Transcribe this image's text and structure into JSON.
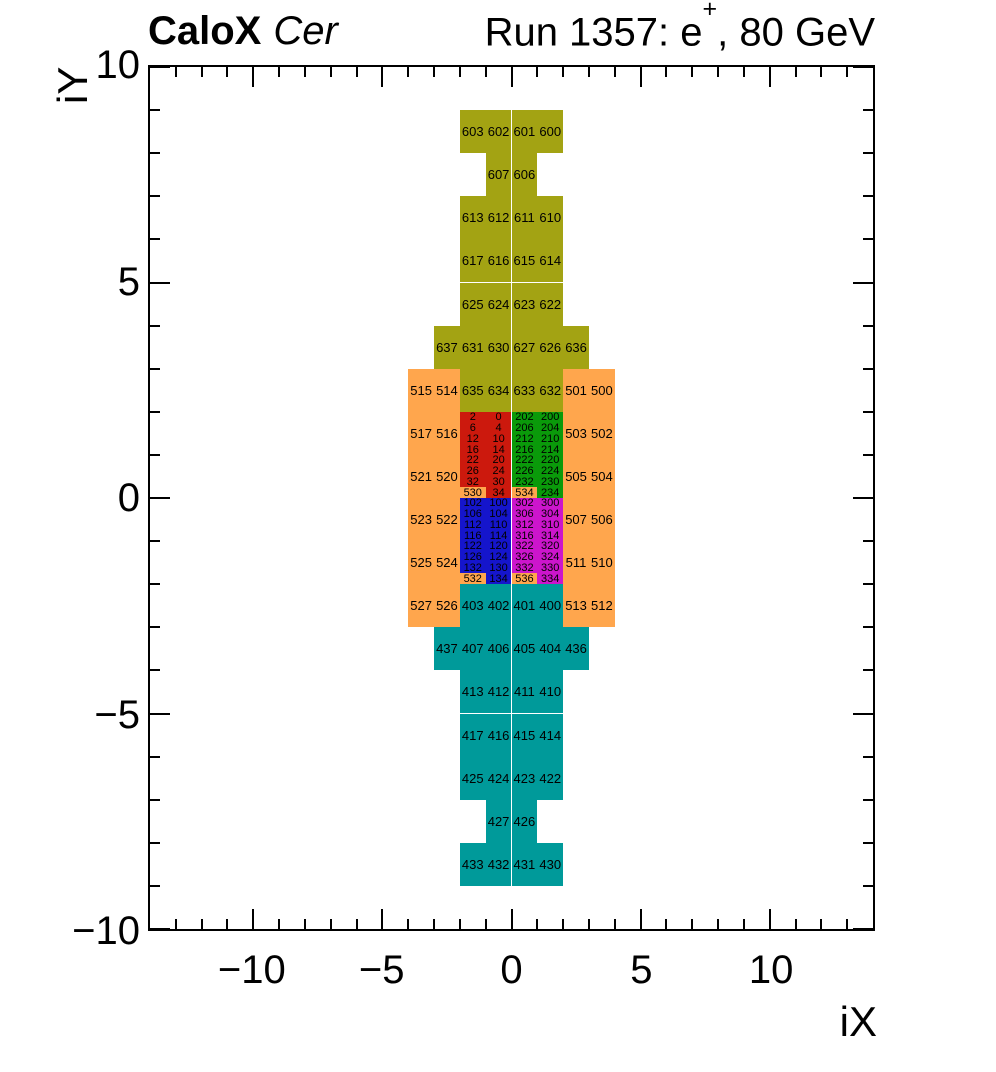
{
  "header": {
    "title_bold": "CaloX",
    "title_italic": "Cer",
    "run_label": {
      "prefix": "Run 1357: e",
      "superscript": "+",
      "suffix": ", 80 GeV"
    }
  },
  "chart_data": {
    "type": "heatmap",
    "title": "CaloX Cer — Run 1357: e+, 80 GeV channel map",
    "xlabel": "iX",
    "ylabel": "iY",
    "xlim": [
      -14,
      14
    ],
    "ylim": [
      -10,
      10
    ],
    "grid": false,
    "x_major_ticks": [
      -10,
      -5,
      0,
      5,
      10
    ],
    "x_major_labels": [
      "−10",
      "−5",
      "0",
      "5",
      "10"
    ],
    "y_major_ticks": [
      -10,
      -5,
      0,
      5,
      10
    ],
    "y_major_labels": [
      "−10",
      "−5",
      "0",
      "5",
      "10"
    ],
    "minor_tick_step": 1,
    "colors": {
      "olive": "#A3A313",
      "orange": "#FFA64D",
      "teal": "#009A9A",
      "red": "#CC190D",
      "green": "#0A9A0A",
      "blue": "#1515CC",
      "magenta": "#CC15CC",
      "axis": "#000000",
      "background": "#FFFFFF"
    },
    "cell_groups": [
      {
        "name": "cer-top-olive",
        "color": "olive",
        "cell_w": 1,
        "cell_h": 1,
        "cells": [
          [
            "603",
            -2,
            8
          ],
          [
            "602",
            -1,
            8
          ],
          [
            "601",
            0,
            8
          ],
          [
            "600",
            1,
            8
          ],
          [
            "607",
            -1,
            7
          ],
          [
            "606",
            0,
            7
          ],
          [
            "613",
            -2,
            6
          ],
          [
            "612",
            -1,
            6
          ],
          [
            "611",
            0,
            6
          ],
          [
            "610",
            1,
            6
          ],
          [
            "617",
            -2,
            5
          ],
          [
            "616",
            -1,
            5
          ],
          [
            "615",
            0,
            5
          ],
          [
            "614",
            1,
            5
          ],
          [
            "625",
            -2,
            4
          ],
          [
            "624",
            -1,
            4
          ],
          [
            "623",
            0,
            4
          ],
          [
            "622",
            1,
            4
          ],
          [
            "637",
            -3,
            3
          ],
          [
            "631",
            -2,
            3
          ],
          [
            "630",
            -1,
            3
          ],
          [
            "627",
            0,
            3
          ],
          [
            "626",
            1,
            3
          ],
          [
            "636",
            2,
            3
          ],
          [
            "635",
            -2,
            2
          ],
          [
            "634",
            -1,
            2
          ],
          [
            "633",
            0,
            2
          ],
          [
            "632",
            1,
            2
          ]
        ]
      },
      {
        "name": "side-orange",
        "color": "orange",
        "cell_w": 1,
        "cell_h": 1,
        "cells": [
          [
            "515",
            -4,
            2
          ],
          [
            "514",
            -3,
            2
          ],
          [
            "501",
            2,
            2
          ],
          [
            "500",
            3,
            2
          ],
          [
            "517",
            -4,
            1
          ],
          [
            "516",
            -3,
            1
          ],
          [
            "503",
            2,
            1
          ],
          [
            "502",
            3,
            1
          ],
          [
            "521",
            -4,
            0
          ],
          [
            "520",
            -3,
            0
          ],
          [
            "505",
            2,
            0
          ],
          [
            "504",
            3,
            0
          ],
          [
            "523",
            -4,
            -1
          ],
          [
            "522",
            -3,
            -1
          ],
          [
            "507",
            2,
            -1
          ],
          [
            "506",
            3,
            -1
          ],
          [
            "525",
            -4,
            -2
          ],
          [
            "524",
            -3,
            -2
          ],
          [
            "511",
            2,
            -2
          ],
          [
            "510",
            3,
            -2
          ],
          [
            "527",
            -4,
            -3
          ],
          [
            "526",
            -3,
            -3
          ],
          [
            "513",
            2,
            -3
          ],
          [
            "512",
            3,
            -3
          ]
        ]
      },
      {
        "name": "bottom-teal",
        "color": "teal",
        "cell_w": 1,
        "cell_h": 1,
        "cells": [
          [
            "403",
            -2,
            -3
          ],
          [
            "402",
            -1,
            -3
          ],
          [
            "401",
            0,
            -3
          ],
          [
            "400",
            1,
            -3
          ],
          [
            "437",
            -3,
            -4
          ],
          [
            "407",
            -2,
            -4
          ],
          [
            "406",
            -1,
            -4
          ],
          [
            "405",
            0,
            -4
          ],
          [
            "404",
            1,
            -4
          ],
          [
            "436",
            2,
            -4
          ],
          [
            "413",
            -2,
            -5
          ],
          [
            "412",
            -1,
            -5
          ],
          [
            "411",
            0,
            -5
          ],
          [
            "410",
            1,
            -5
          ],
          [
            "417",
            -2,
            -6
          ],
          [
            "416",
            -1,
            -6
          ],
          [
            "415",
            0,
            -6
          ],
          [
            "414",
            1,
            -6
          ],
          [
            "425",
            -2,
            -7
          ],
          [
            "424",
            -1,
            -7
          ],
          [
            "423",
            0,
            -7
          ],
          [
            "422",
            1,
            -7
          ],
          [
            "427",
            -1,
            -8
          ],
          [
            "426",
            0,
            -8
          ],
          [
            "433",
            -2,
            -9
          ],
          [
            "432",
            -1,
            -9
          ],
          [
            "431",
            0,
            -9
          ],
          [
            "430",
            1,
            -9
          ]
        ]
      },
      {
        "name": "core-red",
        "color": "red",
        "cell_w": 1,
        "cell_h": 0.25,
        "cells": [
          [
            "2",
            -2,
            1.75
          ],
          [
            "0",
            -1,
            1.75
          ],
          [
            "6",
            -2,
            1.5
          ],
          [
            "4",
            -1,
            1.5
          ],
          [
            "12",
            -2,
            1.25
          ],
          [
            "10",
            -1,
            1.25
          ],
          [
            "16",
            -2,
            1
          ],
          [
            "14",
            -1,
            1
          ],
          [
            "22",
            -2,
            0.75
          ],
          [
            "20",
            -1,
            0.75
          ],
          [
            "26",
            -2,
            0.5
          ],
          [
            "24",
            -1,
            0.5
          ],
          [
            "32",
            -2,
            0.25
          ],
          [
            "30",
            -1,
            0.25
          ],
          [
            "530",
            -2,
            0,
            "orange"
          ],
          [
            "34",
            -1,
            0
          ]
        ]
      },
      {
        "name": "core-green",
        "color": "green",
        "cell_w": 1,
        "cell_h": 0.25,
        "cells": [
          [
            "202",
            0,
            1.75
          ],
          [
            "200",
            1,
            1.75
          ],
          [
            "206",
            0,
            1.5
          ],
          [
            "204",
            1,
            1.5
          ],
          [
            "212",
            0,
            1.25
          ],
          [
            "210",
            1,
            1.25
          ],
          [
            "216",
            0,
            1
          ],
          [
            "214",
            1,
            1
          ],
          [
            "222",
            0,
            0.75
          ],
          [
            "220",
            1,
            0.75
          ],
          [
            "226",
            0,
            0.5
          ],
          [
            "224",
            1,
            0.5
          ],
          [
            "232",
            0,
            0.25
          ],
          [
            "230",
            1,
            0.25
          ],
          [
            "534",
            0,
            0,
            "orange"
          ],
          [
            "234",
            1,
            0
          ]
        ]
      },
      {
        "name": "core-blue",
        "color": "blue",
        "cell_w": 1,
        "cell_h": 0.25,
        "cells": [
          [
            "102",
            -2,
            -0.25
          ],
          [
            "100",
            -1,
            -0.25
          ],
          [
            "106",
            -2,
            -0.5
          ],
          [
            "104",
            -1,
            -0.5
          ],
          [
            "112",
            -2,
            -0.75
          ],
          [
            "110",
            -1,
            -0.75
          ],
          [
            "116",
            -2,
            -1
          ],
          [
            "114",
            -1,
            -1
          ],
          [
            "122",
            -2,
            -1.25
          ],
          [
            "120",
            -1,
            -1.25
          ],
          [
            "126",
            -2,
            -1.5
          ],
          [
            "124",
            -1,
            -1.5
          ],
          [
            "132",
            -2,
            -1.75
          ],
          [
            "130",
            -1,
            -1.75
          ],
          [
            "532",
            -2,
            -2,
            "orange"
          ],
          [
            "134",
            -1,
            -2
          ]
        ]
      },
      {
        "name": "core-magenta",
        "color": "magenta",
        "cell_w": 1,
        "cell_h": 0.25,
        "cells": [
          [
            "302",
            0,
            -0.25
          ],
          [
            "300",
            1,
            -0.25
          ],
          [
            "306",
            0,
            -0.5
          ],
          [
            "304",
            1,
            -0.5
          ],
          [
            "312",
            0,
            -0.75
          ],
          [
            "310",
            1,
            -0.75
          ],
          [
            "316",
            0,
            -1
          ],
          [
            "314",
            1,
            -1
          ],
          [
            "322",
            0,
            -1.25
          ],
          [
            "320",
            1,
            -1.25
          ],
          [
            "326",
            0,
            -1.5
          ],
          [
            "324",
            1,
            -1.5
          ],
          [
            "332",
            0,
            -1.75
          ],
          [
            "330",
            1,
            -1.75
          ],
          [
            "536",
            0,
            -2,
            "orange"
          ],
          [
            "334",
            1,
            -2
          ]
        ]
      }
    ]
  }
}
